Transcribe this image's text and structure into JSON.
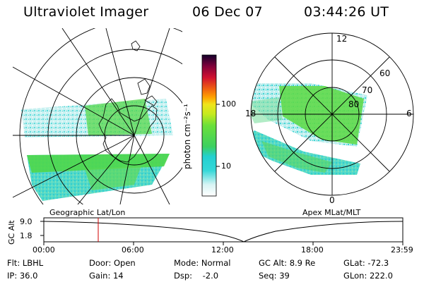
{
  "header": {
    "instrument": "Ultraviolet Imager",
    "date": "06 Dec 07",
    "time": "03:44:26 UT"
  },
  "colorbar": {
    "unit_label": "photon cm⁻²s⁻¹",
    "ticks": [
      "100",
      "10"
    ]
  },
  "left_map": {
    "caption": "Geographic Lat/Lon"
  },
  "right_map": {
    "caption": "Apex MLat/MLT",
    "mlt_labels": {
      "top": "12",
      "left": "18",
      "right": "6",
      "bottom": "0"
    },
    "lat_labels": [
      "60",
      "70",
      "80"
    ]
  },
  "altitude_panel": {
    "ylabel": "GC Alt",
    "yticks": [
      "9.0",
      "1.8"
    ],
    "xticks": [
      "00:00",
      "06:00",
      "12:00",
      "18:00",
      "23:59"
    ],
    "marker_time": "03:44"
  },
  "params": {
    "flt": "Flt: LBHL",
    "ip": "IP: 36.0",
    "door": "Door: Open",
    "gain": "Gain: 14",
    "mode": "Mode: Normal",
    "dsp": "Dsp:    -2.0",
    "gcalt": "GC Alt: 8.9 Re",
    "seq": "Seq: 39",
    "glat": "GLat: -72.3",
    "glon": "GLon: 222.0"
  }
}
